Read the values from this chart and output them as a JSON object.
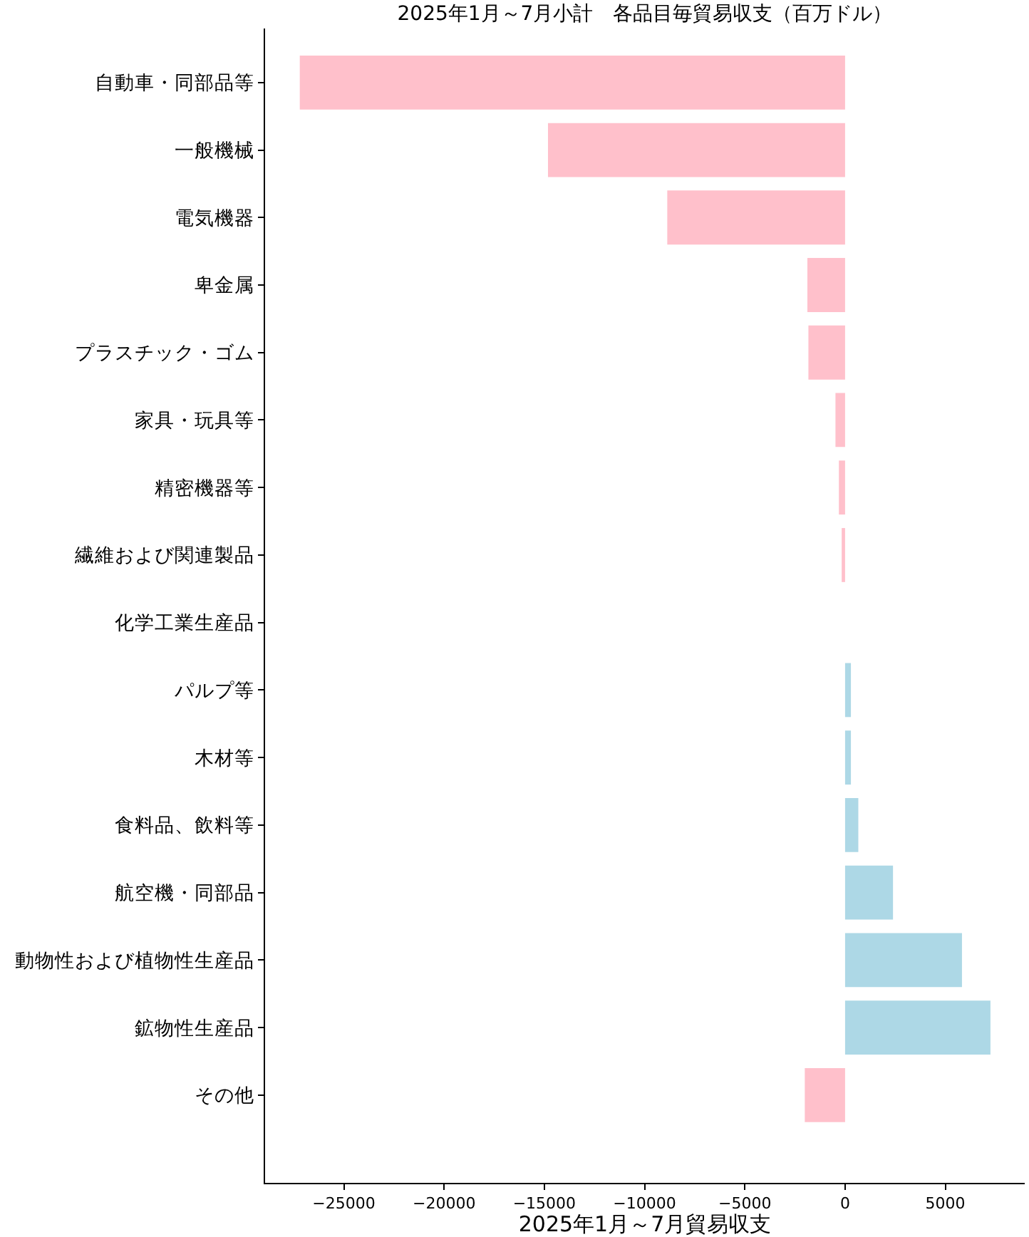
{
  "chart_data": {
    "type": "bar",
    "orientation": "horizontal",
    "title": "2025年1月～7月小計　各品目毎貿易収支（百万ドル）",
    "xlabel": "2025年1月～7月貿易収支",
    "categories": [
      "自動車・同部品等",
      "一般機械",
      "電気機器",
      "卑金属",
      "プラスチック・ゴム",
      "家具・玩具等",
      "精密機器等",
      "繊維および関連製品",
      "化学工業生産品",
      "パルプ等",
      "木材等",
      "食料品、飲料等",
      "航空機・同部品",
      "動物性および植物性生産品",
      "鉱物性生産品",
      "その他"
    ],
    "values": [
      -27200,
      -14820,
      -8870,
      -1880,
      -1830,
      -480,
      -310,
      -170,
      0,
      290,
      290,
      660,
      2390,
      5830,
      7250,
      -2010
    ],
    "colors": [
      "#ffc0cb",
      "#ffc0cb",
      "#ffc0cb",
      "#ffc0cb",
      "#ffc0cb",
      "#ffc0cb",
      "#ffc0cb",
      "#ffc0cb",
      "#ffc0cb",
      "#add8e6",
      "#add8e6",
      "#add8e6",
      "#add8e6",
      "#add8e6",
      "#add8e6",
      "#ffc0cb"
    ],
    "xlim": [
      -28930,
      8960
    ],
    "xticks": [
      {
        "value": -25000,
        "label": "−25000"
      },
      {
        "value": -20000,
        "label": "−20000"
      },
      {
        "value": -15000,
        "label": "−15000"
      },
      {
        "value": -10000,
        "label": "−10000"
      },
      {
        "value": -5000,
        "label": "−5000"
      },
      0,
      5000
    ]
  }
}
